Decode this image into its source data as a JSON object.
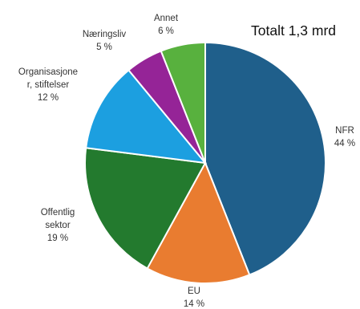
{
  "chart_data": {
    "type": "pie",
    "title": "Totalt 1,3 mrd",
    "slices": [
      {
        "name": "NFR",
        "value": 44,
        "label": "44 %",
        "color": "#1F5F8B"
      },
      {
        "name": "EU",
        "value": 14,
        "label": "14 %",
        "color": "#E97C30"
      },
      {
        "name": "Offentlig sektor",
        "value": 19,
        "label": "19 %",
        "color": "#237A2E"
      },
      {
        "name": "Organisasjoner, stiftelser",
        "value": 12,
        "label": "12 %",
        "color": "#1C9FE0"
      },
      {
        "name": "Næringsliv",
        "value": 5,
        "label": "5 %",
        "color": "#952497"
      },
      {
        "name": "Annet",
        "value": 6,
        "label": "6 %",
        "color": "#58B13E"
      }
    ],
    "label_lines": [
      [
        "NFR",
        "44 %"
      ],
      [
        "EU",
        "14 %"
      ],
      [
        "Offentlig",
        "sektor",
        "19 %"
      ],
      [
        "Organisasjone",
        "r, stiftelser",
        "12 %"
      ],
      [
        "Næringsliv",
        "5 %"
      ],
      [
        "Annet",
        "6 %"
      ]
    ]
  }
}
